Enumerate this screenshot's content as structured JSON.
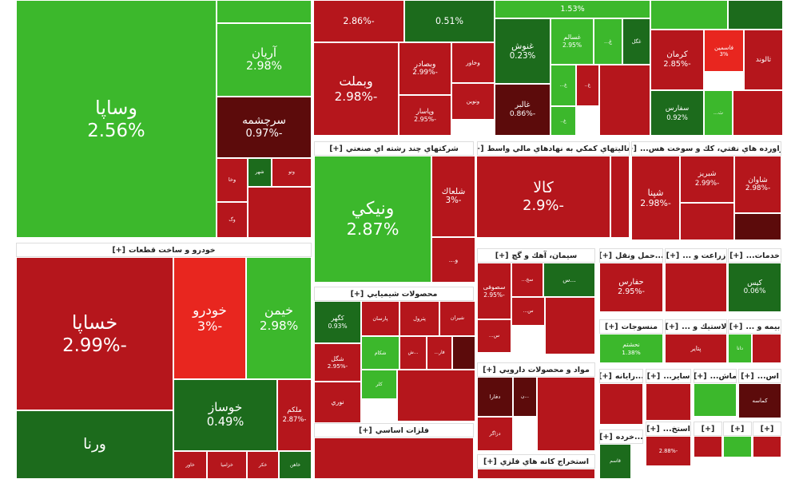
{
  "tiles": [
    {
      "name": "وساپا",
      "change": "2.56%",
      "color": "#3cb82c"
    },
    {
      "color": "#3cb82c"
    },
    {
      "name": "آريان",
      "change": "2.98%",
      "color": "#3cb82c"
    },
    {
      "name": "سرچشمه",
      "change": "-0.97%",
      "color": "#5c0b0b"
    },
    {
      "name": "وتو",
      "color": "#b5161c"
    },
    {
      "name": "شهر",
      "color": "#1c6b1c"
    },
    {
      "name": "وخا",
      "color": "#b5161c"
    },
    {
      "name": "وگ",
      "color": "#b5161c"
    },
    {
      "color": "#b5161c"
    },
    {
      "change": "-2.86%",
      "color": "#b5161c"
    },
    {
      "change": "0.51%",
      "color": "#1c6b1c"
    },
    {
      "name": "وبملت",
      "change": "-2.98%",
      "color": "#b5161c"
    },
    {
      "name": "وبصادر",
      "change": "-2.99%",
      "color": "#b5161c"
    },
    {
      "name": "وخاور",
      "color": "#b5161c"
    },
    {
      "name": "ونوين",
      "color": "#b5161c"
    },
    {
      "name": "وپاسار",
      "change": "-2.95%",
      "color": "#b5161c"
    },
    {
      "change": "1.53%",
      "color": "#3cb82c"
    },
    {
      "name": "غنوش",
      "change": "0.23%",
      "color": "#1c6b1c"
    },
    {
      "name": "غسالم",
      "change": "2.95%",
      "color": "#3cb82c"
    },
    {
      "name": "غ...",
      "color": "#3cb82c"
    },
    {
      "name": "غگل",
      "color": "#1c6b1c"
    },
    {
      "name": "غالبر",
      "change": "-0.86%",
      "color": "#5c0b0b"
    },
    {
      "name": "غ...",
      "color": "#3cb82c"
    },
    {
      "name": "غ..",
      "color": "#3cb82c"
    },
    {
      "name": "غ..",
      "color": "#b5161c"
    },
    {
      "color": "#b5161c"
    },
    {
      "color": "#3cb82c"
    },
    {
      "color": "#1c6b1c"
    },
    {
      "name": "كرمان",
      "change": "-2.85%",
      "color": "#b5161c"
    },
    {
      "name": "فاسمين",
      "change": "3%",
      "color": "#e8261f"
    },
    {
      "name": "ثالوند",
      "color": "#b5161c"
    },
    {
      "name": "سفارس",
      "change": "0.92%",
      "color": "#1c6b1c"
    },
    {
      "name": "ث...",
      "color": "#3cb82c"
    },
    {
      "color": "#b5161c"
    },
    {
      "name": "ونيکي",
      "change": "2.87%",
      "color": "#3cb82c"
    },
    {
      "name": "شلعاك",
      "change": "-3%",
      "color": "#b5161c"
    },
    {
      "name": "و...",
      "color": "#b5161c"
    },
    {
      "name": "کالا",
      "change": "-2.9%",
      "color": "#b5161c"
    },
    {
      "color": "#b5161c"
    },
    {
      "name": "شپنا",
      "change": "-2.98%",
      "color": "#b5161c"
    },
    {
      "name": "شبريز",
      "change": "-2.99%",
      "color": "#b5161c"
    },
    {
      "name": "شاوان",
      "change": "-2.98%",
      "color": "#b5161c"
    },
    {
      "color": "#b5161c"
    },
    {
      "color": "#5c0b0b"
    },
    {
      "name": "خساپا",
      "change": "-2.99%",
      "color": "#b5161c"
    },
    {
      "name": "خودرو",
      "change": "-3%",
      "color": "#e8261f"
    },
    {
      "name": "خيمن",
      "change": "2.98%",
      "color": "#3cb82c"
    },
    {
      "name": "خوساز",
      "change": "0.49%",
      "color": "#1c6b1c"
    },
    {
      "name": "ملکم",
      "change": "-2.87%",
      "color": "#b5161c"
    },
    {
      "name": "ورنا",
      "color": "#1c6b1c"
    },
    {
      "name": "خاور",
      "color": "#b5161c"
    },
    {
      "name": "خزاميا",
      "color": "#b5161c"
    },
    {
      "name": "خکر",
      "color": "#b5161c"
    },
    {
      "name": "خاهن",
      "color": "#1c6b1c"
    },
    {
      "name": "...س",
      "color": "#1c6b1c"
    },
    {
      "name": "سخ...",
      "color": "#b5161c"
    },
    {
      "name": "سصوفی",
      "change": "-2.95%",
      "color": "#b5161c"
    },
    {
      "name": "س...",
      "color": "#b5161c"
    },
    {
      "name": "س...",
      "color": "#b5161c"
    },
    {
      "color": "#b5161c"
    },
    {
      "name": "دفارا",
      "color": "#5c0b0b"
    },
    {
      "name": "...ن",
      "color": "#5c0b0b"
    },
    {
      "name": "دزاگر",
      "color": "#b5161c"
    },
    {
      "color": "#b5161c"
    },
    {
      "color": "#b5161c"
    },
    {
      "name": "كگهر",
      "change": "0.93%",
      "color": "#1c6b1c"
    },
    {
      "name": "پارسان",
      "color": "#b5161c"
    },
    {
      "name": "پترول",
      "color": "#b5161c"
    },
    {
      "name": "شيران",
      "color": "#b5161c"
    },
    {
      "name": "شکام",
      "color": "#3cb82c"
    },
    {
      "name": "...ش",
      "color": "#b5161c"
    },
    {
      "name": "فار...",
      "color": "#b5161c"
    },
    {
      "color": "#5c0b0b"
    },
    {
      "name": "شگل",
      "change": "-2.95%",
      "color": "#b5161c"
    },
    {
      "name": "كلر",
      "color": "#3cb82c"
    },
    {
      "name": "نوري",
      "color": "#b5161c"
    },
    {
      "color": "#b5161c"
    },
    {
      "color": "#b5161c"
    },
    {
      "name": "حفارس",
      "change": "-2.95%",
      "color": "#b5161c"
    },
    {
      "color": "#b5161c"
    },
    {
      "name": "كيس",
      "change": "0.06%",
      "color": "#1c6b1c"
    },
    {
      "name": "نحشتم",
      "change": "1.38%",
      "color": "#3cb82c"
    },
    {
      "name": "پتاير",
      "color": "#b5161c"
    },
    {
      "name": "دانا",
      "color": "#3cb82c"
    },
    {
      "color": "#b5161c"
    },
    {
      "color": "#b5161c"
    },
    {
      "color": "#b5161c"
    },
    {
      "color": "#3cb82c"
    },
    {
      "name": "كماسه",
      "color": "#5c0b0b"
    },
    {
      "name": "قاسم",
      "color": "#1c6b1c"
    },
    {
      "change": "-2.88%",
      "color": "#b5161c"
    },
    {
      "color": "#b5161c"
    },
    {
      "color": "#3cb82c"
    },
    {
      "color": "#b5161c"
    }
  ],
  "headers": [
    {
      "title": "شرکتهاي چند رشته اي صنعتي",
      "toggle": "[+]"
    },
    {
      "title": "فعاليتهاي کمکي به نهادهاي مالي واسط",
      "toggle": "[+]"
    },
    {
      "title": "فراورده هاي نفتي، كك و سوخت هس...",
      "toggle": "[+]"
    },
    {
      "title": "خودرو و ساخت قطعات",
      "toggle": "[+]"
    },
    {
      "title": "سيمان، آهك و گچ",
      "toggle": "[+]"
    },
    {
      "title": "مواد و محصولات دارويي",
      "toggle": "[+]"
    },
    {
      "title": "استخراج کانه هاي فلزي",
      "toggle": "[+]"
    },
    {
      "title": "محصولات شيميايي",
      "toggle": "[+]"
    },
    {
      "title": "فلزات اساسي",
      "toggle": "[+]"
    },
    {
      "title": "...حمل ونقل",
      "toggle": "[+]"
    },
    {
      "title": "زراعت و ...",
      "toggle": "[+]"
    },
    {
      "title": "خدمات...",
      "toggle": "[+]"
    },
    {
      "title": "منسوجات",
      "toggle": "[+]"
    },
    {
      "title": "لاستيك و ...",
      "toggle": "[+]"
    },
    {
      "title": "بيمه و ...",
      "toggle": "[+]"
    },
    {
      "title": "...رايانه",
      "toggle": "[+]"
    },
    {
      "title": "ساير...",
      "toggle": "[+]"
    },
    {
      "title": "ماش...",
      "toggle": "[+]"
    },
    {
      "title": "اس...",
      "toggle": "[+]"
    },
    {
      "title": "...خرده",
      "toggle": "[+]"
    },
    {
      "title": "استخ...",
      "toggle": "[+]"
    },
    {
      "toggle": "[+]"
    },
    {
      "toggle": "[+]"
    },
    {
      "toggle": "[+]"
    }
  ]
}
